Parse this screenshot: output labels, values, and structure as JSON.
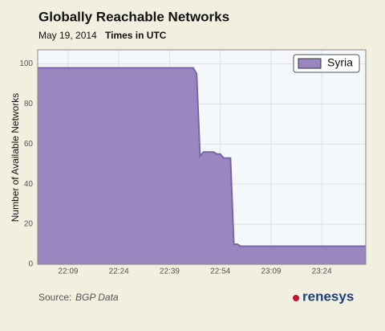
{
  "chart_data": {
    "type": "area",
    "title": "Globally Reachable Networks",
    "subtitle": "May 19, 2014",
    "timezone_note": "Times in UTC",
    "ylabel": "Number of Available Networks",
    "source_label": "Source:",
    "source": "BGP Data",
    "logo": "renesys",
    "x": [
      "22:00",
      "22:46",
      "22:47",
      "22:48",
      "22:49",
      "22:52",
      "22:53",
      "22:54",
      "22:55",
      "22:57",
      "22:58",
      "22:59",
      "23:00",
      "23:37"
    ],
    "series": [
      {
        "name": "Syria",
        "color": "#9b87c0",
        "values": [
          98,
          98,
          95,
          54,
          56,
          56,
          55,
          55,
          53,
          53,
          10,
          10,
          9,
          9
        ]
      }
    ],
    "xlim": [
      "22:00",
      "23:37"
    ],
    "xticks": [
      "22:09",
      "22:24",
      "22:39",
      "22:54",
      "23:09",
      "23:24"
    ],
    "ylim": [
      0,
      107
    ],
    "yticks": [
      0,
      20,
      40,
      60,
      80,
      100
    ],
    "grid": true,
    "legend": "upper right"
  }
}
